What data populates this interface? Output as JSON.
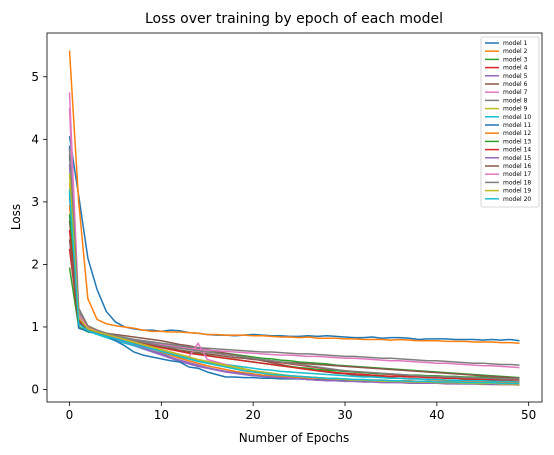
{
  "chart_data": {
    "type": "line",
    "title": "Loss over training by epoch of each model",
    "xlabel": "Number of Epochs",
    "ylabel": "Loss",
    "xlim": [
      -2.45,
      51.45
    ],
    "ylim": [
      -0.2,
      5.7
    ],
    "xticks": [
      0,
      10,
      20,
      30,
      40,
      50
    ],
    "yticks": [
      0,
      1,
      2,
      3,
      4,
      5
    ],
    "grid": false,
    "legend_position": "top-right",
    "x": [
      0,
      1,
      2,
      3,
      4,
      5,
      6,
      7,
      8,
      9,
      10,
      11,
      12,
      13,
      14,
      15,
      16,
      17,
      18,
      19,
      20,
      21,
      22,
      23,
      24,
      25,
      26,
      27,
      28,
      29,
      30,
      31,
      32,
      33,
      34,
      35,
      36,
      37,
      38,
      39,
      40,
      41,
      42,
      43,
      44,
      45,
      46,
      47,
      48,
      49
    ],
    "series": [
      {
        "name": "model 1",
        "color": "#1f77b4",
        "values": [
          4.05,
          3.1,
          2.1,
          1.6,
          1.25,
          1.08,
          1.0,
          0.97,
          0.95,
          0.95,
          0.93,
          0.95,
          0.94,
          0.91,
          0.9,
          0.88,
          0.87,
          0.87,
          0.86,
          0.87,
          0.88,
          0.87,
          0.86,
          0.86,
          0.85,
          0.85,
          0.86,
          0.85,
          0.86,
          0.85,
          0.84,
          0.83,
          0.83,
          0.84,
          0.82,
          0.83,
          0.83,
          0.82,
          0.8,
          0.81,
          0.81,
          0.81,
          0.8,
          0.8,
          0.8,
          0.79,
          0.8,
          0.79,
          0.8,
          0.78
        ]
      },
      {
        "name": "model 2",
        "color": "#ff7f0e",
        "values": [
          5.42,
          3.0,
          1.45,
          1.12,
          1.05,
          1.02,
          1.0,
          0.98,
          0.95,
          0.93,
          0.93,
          0.92,
          0.92,
          0.91,
          0.9,
          0.88,
          0.88,
          0.87,
          0.87,
          0.87,
          0.86,
          0.86,
          0.85,
          0.84,
          0.84,
          0.83,
          0.84,
          0.82,
          0.82,
          0.82,
          0.81,
          0.81,
          0.8,
          0.8,
          0.8,
          0.79,
          0.8,
          0.79,
          0.78,
          0.78,
          0.78,
          0.77,
          0.77,
          0.77,
          0.76,
          0.76,
          0.76,
          0.75,
          0.75,
          0.74
        ]
      },
      {
        "name": "model 3",
        "color": "#2ca02c",
        "values": [
          1.95,
          1.0,
          0.92,
          0.9,
          0.88,
          0.85,
          0.83,
          0.8,
          0.78,
          0.76,
          0.74,
          0.72,
          0.7,
          0.68,
          0.66,
          0.63,
          0.6,
          0.58,
          0.56,
          0.54,
          0.52,
          0.5,
          0.49,
          0.47,
          0.46,
          0.44,
          0.43,
          0.42,
          0.41,
          0.39,
          0.38,
          0.37,
          0.36,
          0.35,
          0.34,
          0.33,
          0.32,
          0.31,
          0.3,
          0.29,
          0.28,
          0.27,
          0.26,
          0.25,
          0.24,
          0.23,
          0.22,
          0.21,
          0.2,
          0.19
        ]
      },
      {
        "name": "model 4",
        "color": "#d62728",
        "values": [
          2.25,
          1.05,
          0.93,
          0.9,
          0.88,
          0.85,
          0.82,
          0.8,
          0.77,
          0.75,
          0.72,
          0.7,
          0.67,
          0.65,
          0.62,
          0.6,
          0.58,
          0.56,
          0.54,
          0.52,
          0.5,
          0.47,
          0.45,
          0.43,
          0.41,
          0.39,
          0.37,
          0.35,
          0.33,
          0.31,
          0.3,
          0.28,
          0.27,
          0.26,
          0.25,
          0.24,
          0.23,
          0.22,
          0.21,
          0.2,
          0.19,
          0.18,
          0.18,
          0.17,
          0.16,
          0.15,
          0.15,
          0.14,
          0.14,
          0.13
        ]
      },
      {
        "name": "model 5",
        "color": "#9467bd",
        "values": [
          3.1,
          1.1,
          0.95,
          0.9,
          0.85,
          0.8,
          0.75,
          0.7,
          0.65,
          0.6,
          0.55,
          0.5,
          0.45,
          0.41,
          0.37,
          0.34,
          0.31,
          0.28,
          0.26,
          0.24,
          0.22,
          0.21,
          0.2,
          0.19,
          0.18,
          0.17,
          0.16,
          0.15,
          0.15,
          0.14,
          0.14,
          0.13,
          0.13,
          0.12,
          0.12,
          0.12,
          0.11,
          0.11,
          0.11,
          0.1,
          0.1,
          0.1,
          0.1,
          0.09,
          0.09,
          0.09,
          0.09,
          0.08,
          0.08,
          0.08
        ]
      },
      {
        "name": "model 6",
        "color": "#8c564b",
        "values": [
          2.7,
          1.15,
          0.97,
          0.92,
          0.9,
          0.88,
          0.86,
          0.84,
          0.82,
          0.8,
          0.78,
          0.75,
          0.72,
          0.7,
          0.67,
          0.64,
          0.61,
          0.58,
          0.55,
          0.52,
          0.49,
          0.46,
          0.43,
          0.4,
          0.37,
          0.34,
          0.32,
          0.3,
          0.28,
          0.26,
          0.25,
          0.23,
          0.22,
          0.21,
          0.2,
          0.19,
          0.18,
          0.17,
          0.17,
          0.16,
          0.16,
          0.15,
          0.15,
          0.15,
          0.14,
          0.14,
          0.14,
          0.13,
          0.13,
          0.13
        ]
      },
      {
        "name": "model 7",
        "color": "#e377c2",
        "values": [
          4.75,
          1.3,
          1.0,
          0.92,
          0.88,
          0.85,
          0.82,
          0.8,
          0.78,
          0.75,
          0.72,
          0.7,
          0.68,
          0.66,
          0.64,
          0.63,
          0.62,
          0.61,
          0.6,
          0.59,
          0.58,
          0.57,
          0.56,
          0.55,
          0.55,
          0.54,
          0.53,
          0.53,
          0.52,
          0.51,
          0.5,
          0.5,
          0.49,
          0.48,
          0.47,
          0.46,
          0.46,
          0.45,
          0.44,
          0.43,
          0.42,
          0.42,
          0.41,
          0.4,
          0.39,
          0.38,
          0.38,
          0.37,
          0.36,
          0.35
        ]
      },
      {
        "name": "model 8",
        "color": "#7f7f7f",
        "values": [
          3.75,
          1.25,
          1.0,
          0.94,
          0.9,
          0.86,
          0.83,
          0.8,
          0.78,
          0.76,
          0.74,
          0.72,
          0.7,
          0.68,
          0.67,
          0.66,
          0.65,
          0.64,
          0.63,
          0.62,
          0.61,
          0.6,
          0.6,
          0.59,
          0.58,
          0.57,
          0.57,
          0.56,
          0.55,
          0.54,
          0.53,
          0.53,
          0.52,
          0.51,
          0.5,
          0.5,
          0.49,
          0.48,
          0.47,
          0.46,
          0.46,
          0.45,
          0.44,
          0.43,
          0.42,
          0.42,
          0.41,
          0.4,
          0.4,
          0.39
        ]
      },
      {
        "name": "model 9",
        "color": "#bcbd22",
        "values": [
          3.3,
          1.1,
          0.95,
          0.9,
          0.86,
          0.82,
          0.78,
          0.74,
          0.7,
          0.66,
          0.62,
          0.58,
          0.54,
          0.5,
          0.46,
          0.43,
          0.4,
          0.37,
          0.34,
          0.31,
          0.29,
          0.27,
          0.25,
          0.23,
          0.21,
          0.2,
          0.19,
          0.18,
          0.17,
          0.16,
          0.15,
          0.14,
          0.14,
          0.13,
          0.13,
          0.12,
          0.12,
          0.11,
          0.11,
          0.1,
          0.1,
          0.1,
          0.09,
          0.09,
          0.09,
          0.08,
          0.08,
          0.08,
          0.08,
          0.07
        ]
      },
      {
        "name": "model 10",
        "color": "#17becf",
        "values": [
          3.2,
          1.05,
          0.93,
          0.88,
          0.83,
          0.78,
          0.74,
          0.7,
          0.66,
          0.62,
          0.58,
          0.55,
          0.52,
          0.49,
          0.46,
          0.44,
          0.42,
          0.4,
          0.38,
          0.36,
          0.34,
          0.32,
          0.31,
          0.29,
          0.28,
          0.27,
          0.26,
          0.25,
          0.24,
          0.23,
          0.22,
          0.21,
          0.2,
          0.2,
          0.19,
          0.18,
          0.18,
          0.17,
          0.17,
          0.16,
          0.16,
          0.15,
          0.15,
          0.14,
          0.14,
          0.14,
          0.13,
          0.13,
          0.13,
          0.12
        ]
      },
      {
        "name": "model 11",
        "color": "#1f77b4",
        "values": [
          3.9,
          0.98,
          0.93,
          0.9,
          0.86,
          0.78,
          0.7,
          0.6,
          0.55,
          0.52,
          0.49,
          0.46,
          0.44,
          0.36,
          0.34,
          0.28,
          0.24,
          0.2,
          0.2,
          0.19,
          0.19,
          0.18,
          0.18,
          0.17,
          0.17,
          0.17,
          0.16,
          0.16,
          0.16,
          0.15,
          0.15,
          0.15,
          0.14,
          0.14,
          0.14,
          0.14,
          0.13,
          0.13,
          0.13,
          0.13,
          0.12,
          0.12,
          0.12,
          0.12,
          0.11,
          0.11,
          0.11,
          0.11,
          0.1,
          0.1
        ]
      },
      {
        "name": "model 12",
        "color": "#ff7f0e",
        "values": [
          2.95,
          1.2,
          1.0,
          0.95,
          0.9,
          0.85,
          0.8,
          0.75,
          0.7,
          0.65,
          0.6,
          0.55,
          0.5,
          0.46,
          0.42,
          0.38,
          0.35,
          0.32,
          0.29,
          0.27,
          0.25,
          0.23,
          0.22,
          0.21,
          0.2,
          0.19,
          0.18,
          0.18,
          0.17,
          0.17,
          0.16,
          0.16,
          0.15,
          0.15,
          0.15,
          0.14,
          0.14,
          0.14,
          0.13,
          0.13,
          0.13,
          0.13,
          0.12,
          0.12,
          0.12,
          0.12,
          0.11,
          0.11,
          0.11,
          0.11
        ]
      },
      {
        "name": "model 13",
        "color": "#2ca02c",
        "values": [
          2.8,
          1.1,
          0.95,
          0.9,
          0.86,
          0.83,
          0.8,
          0.77,
          0.74,
          0.71,
          0.68,
          0.65,
          0.62,
          0.6,
          0.57,
          0.55,
          0.52,
          0.5,
          0.48,
          0.46,
          0.44,
          0.42,
          0.4,
          0.38,
          0.37,
          0.35,
          0.34,
          0.32,
          0.31,
          0.3,
          0.29,
          0.28,
          0.27,
          0.26,
          0.25,
          0.25,
          0.24,
          0.23,
          0.23,
          0.22,
          0.22,
          0.21,
          0.21,
          0.2,
          0.2,
          0.2,
          0.19,
          0.19,
          0.19,
          0.18
        ]
      },
      {
        "name": "model 14",
        "color": "#d62728",
        "values": [
          2.55,
          1.12,
          0.96,
          0.91,
          0.87,
          0.83,
          0.8,
          0.76,
          0.73,
          0.7,
          0.67,
          0.64,
          0.61,
          0.58,
          0.56,
          0.54,
          0.52,
          0.5,
          0.48,
          0.46,
          0.44,
          0.42,
          0.4,
          0.38,
          0.36,
          0.34,
          0.32,
          0.3,
          0.29,
          0.27,
          0.26,
          0.25,
          0.24,
          0.23,
          0.22,
          0.21,
          0.21,
          0.2,
          0.2,
          0.19,
          0.19,
          0.18,
          0.18,
          0.18,
          0.17,
          0.17,
          0.17,
          0.16,
          0.16,
          0.16
        ]
      },
      {
        "name": "model 15",
        "color": "#9467bd",
        "values": [
          3.6,
          1.15,
          0.97,
          0.92,
          0.87,
          0.82,
          0.77,
          0.72,
          0.67,
          0.62,
          0.57,
          0.52,
          0.47,
          0.43,
          0.39,
          0.35,
          0.32,
          0.29,
          0.27,
          0.25,
          0.23,
          0.21,
          0.2,
          0.19,
          0.18,
          0.17,
          0.16,
          0.15,
          0.14,
          0.14,
          0.13,
          0.13,
          0.12,
          0.12,
          0.11,
          0.11,
          0.11,
          0.1,
          0.1,
          0.1,
          0.1,
          0.09,
          0.09,
          0.09,
          0.09,
          0.09,
          0.08,
          0.08,
          0.08,
          0.08
        ]
      },
      {
        "name": "model 16",
        "color": "#8c564b",
        "values": [
          2.4,
          1.08,
          0.95,
          0.9,
          0.87,
          0.84,
          0.81,
          0.78,
          0.75,
          0.72,
          0.69,
          0.66,
          0.63,
          0.61,
          0.59,
          0.57,
          0.55,
          0.53,
          0.51,
          0.5,
          0.48,
          0.47,
          0.46,
          0.44,
          0.43,
          0.42,
          0.41,
          0.4,
          0.39,
          0.38,
          0.37,
          0.36,
          0.35,
          0.34,
          0.33,
          0.32,
          0.31,
          0.3,
          0.29,
          0.28,
          0.27,
          0.26,
          0.25,
          0.24,
          0.23,
          0.22,
          0.21,
          0.2,
          0.19,
          0.18
        ]
      },
      {
        "name": "model 17",
        "color": "#e377c2",
        "values": [
          4.5,
          1.2,
          0.98,
          0.92,
          0.88,
          0.84,
          0.8,
          0.76,
          0.72,
          0.68,
          0.64,
          0.6,
          0.56,
          0.52,
          0.74,
          0.48,
          0.44,
          0.4,
          0.36,
          0.33,
          0.3,
          0.28,
          0.26,
          0.24,
          0.22,
          0.21,
          0.2,
          0.19,
          0.18,
          0.17,
          0.17,
          0.16,
          0.15,
          0.15,
          0.14,
          0.14,
          0.13,
          0.13,
          0.13,
          0.12,
          0.12,
          0.12,
          0.11,
          0.11,
          0.11,
          0.11,
          0.1,
          0.1,
          0.1,
          0.1
        ]
      },
      {
        "name": "model 18",
        "color": "#7f7f7f",
        "values": [
          3.85,
          1.3,
          1.02,
          0.95,
          0.9,
          0.86,
          0.82,
          0.79,
          0.76,
          0.73,
          0.7,
          0.68,
          0.66,
          0.64,
          0.62,
          0.6,
          0.58,
          0.56,
          0.54,
          0.52,
          0.5,
          0.48,
          0.46,
          0.44,
          0.42,
          0.4,
          0.38,
          0.36,
          0.34,
          0.32,
          0.3,
          0.29,
          0.28,
          0.27,
          0.26,
          0.25,
          0.24,
          0.23,
          0.22,
          0.21,
          0.21,
          0.2,
          0.2,
          0.19,
          0.19,
          0.18,
          0.18,
          0.17,
          0.17,
          0.17
        ]
      },
      {
        "name": "model 19",
        "color": "#bcbd22",
        "values": [
          3.45,
          1.15,
          0.97,
          0.92,
          0.88,
          0.84,
          0.8,
          0.76,
          0.72,
          0.68,
          0.64,
          0.6,
          0.56,
          0.52,
          0.48,
          0.45,
          0.42,
          0.39,
          0.36,
          0.33,
          0.3,
          0.28,
          0.26,
          0.24,
          0.22,
          0.21,
          0.2,
          0.19,
          0.18,
          0.17,
          0.16,
          0.15,
          0.15,
          0.14,
          0.14,
          0.13,
          0.13,
          0.12,
          0.12,
          0.12,
          0.11,
          0.11,
          0.11,
          0.1,
          0.1,
          0.1,
          0.1,
          0.09,
          0.09,
          0.09
        ]
      },
      {
        "name": "model 20",
        "color": "#17becf",
        "values": [
          3.15,
          1.05,
          0.94,
          0.89,
          0.85,
          0.81,
          0.77,
          0.73,
          0.69,
          0.65,
          0.61,
          0.57,
          0.53,
          0.49,
          0.45,
          0.42,
          0.39,
          0.36,
          0.33,
          0.3,
          0.28,
          0.26,
          0.24,
          0.23,
          0.22,
          0.21,
          0.2,
          0.19,
          0.18,
          0.18,
          0.17,
          0.16,
          0.16,
          0.15,
          0.15,
          0.14,
          0.14,
          0.13,
          0.13,
          0.13,
          0.12,
          0.12,
          0.12,
          0.11,
          0.11,
          0.11,
          0.11,
          0.1,
          0.1,
          0.1
        ]
      }
    ]
  }
}
